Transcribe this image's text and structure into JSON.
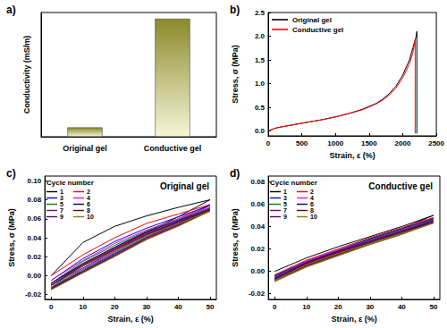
{
  "chart_data": [
    {
      "type": "bar",
      "title": "a)",
      "ylabel": "Conductivity (mS/m)",
      "categories": [
        "Original gel",
        "Conductive gel"
      ],
      "values": [
        6,
        76
      ],
      "color": "#8c8a2a",
      "ylim": [
        0,
        80
      ],
      "tick_labels": "x",
      "grid": false
    },
    {
      "type": "line",
      "title": "b)",
      "xlabel": "Strain, ε (%)",
      "ylabel": "Stress, σ (MPa)",
      "xlim": [
        0,
        2500
      ],
      "xticks": [
        0,
        500,
        1000,
        1500,
        2000,
        2500
      ],
      "ylim": [
        -0.1,
        2.5
      ],
      "yticks": [
        {
          "value": 0,
          "label": "0.0"
        },
        0.5,
        {
          "value": 1,
          "label": "1.0"
        },
        1.5,
        {
          "value": 2,
          "label": "2.0"
        },
        2.5
      ],
      "legend": "upper left",
      "grid": false,
      "series": [
        {
          "name": "Original gel",
          "color": "#000000",
          "x": [
            0,
            100,
            200,
            400,
            600,
            800,
            1000,
            1200,
            1400,
            1600,
            1700,
            1800,
            1900,
            2000,
            2100,
            2150,
            2200,
            2210,
            2210
          ],
          "values": [
            0,
            0.06,
            0.09,
            0.14,
            0.19,
            0.24,
            0.3,
            0.37,
            0.46,
            0.58,
            0.67,
            0.79,
            0.95,
            1.18,
            1.5,
            1.75,
            2.0,
            2.1,
            -0.05
          ]
        },
        {
          "name": "Conductive gel",
          "color": "#ff0000",
          "x": [
            0,
            100,
            200,
            400,
            600,
            800,
            1000,
            1200,
            1400,
            1600,
            1700,
            1800,
            1900,
            2000,
            2100,
            2150,
            2185,
            2185
          ],
          "values": [
            0,
            0.06,
            0.09,
            0.14,
            0.19,
            0.24,
            0.3,
            0.37,
            0.45,
            0.57,
            0.65,
            0.76,
            0.91,
            1.12,
            1.42,
            1.65,
            1.93,
            -0.05
          ]
        }
      ]
    },
    {
      "type": "line",
      "title": "c)",
      "xlabel": "Strain, ε (%)",
      "ylabel": "Stress, σ (MPa)",
      "annotations": [
        "Original gel",
        "Cycle number"
      ],
      "xlim": [
        -2,
        52
      ],
      "xticks": [
        0,
        10,
        20,
        30,
        40,
        50
      ],
      "ylim": [
        -0.025,
        0.105
      ],
      "yticks": [
        -0.02,
        {
          "value": 0,
          "label": "0.00"
        },
        0.02,
        0.04,
        0.06,
        0.08,
        {
          "value": 0.1,
          "label": "0.10"
        }
      ],
      "legend": "upper left",
      "grid": false,
      "x": [
        0,
        10,
        20,
        30,
        40,
        50,
        40,
        30,
        20,
        10,
        0
      ],
      "series": [
        {
          "name": "1",
          "color": "#000000",
          "values": [
            0,
            0.035,
            0.052,
            0.063,
            0.072,
            0.08,
            0.062,
            0.046,
            0.03,
            0.012,
            -0.008
          ]
        },
        {
          "name": "2",
          "color": "#ff0000",
          "values": [
            0,
            0.022,
            0.04,
            0.055,
            0.065,
            0.075,
            0.06,
            0.045,
            0.028,
            0.01,
            -0.01
          ]
        },
        {
          "name": "3",
          "color": "#0000ff",
          "values": [
            -0.005,
            0.018,
            0.036,
            0.05,
            0.062,
            0.074,
            0.058,
            0.043,
            0.026,
            0.008,
            -0.01
          ]
        },
        {
          "name": "4",
          "color": "#ff00ff",
          "values": [
            -0.005,
            0.016,
            0.034,
            0.048,
            0.06,
            0.072,
            0.057,
            0.042,
            0.025,
            0.007,
            -0.012
          ]
        },
        {
          "name": "5",
          "color": "#008000",
          "values": [
            -0.008,
            0.015,
            0.032,
            0.047,
            0.059,
            0.071,
            0.056,
            0.041,
            0.024,
            0.006,
            -0.012
          ]
        },
        {
          "name": "6",
          "color": "#000080",
          "values": [
            -0.008,
            0.013,
            0.03,
            0.046,
            0.058,
            0.07,
            0.055,
            0.04,
            0.023,
            0.005,
            -0.013
          ]
        },
        {
          "name": "7",
          "color": "#800080",
          "values": [
            -0.01,
            0.012,
            0.029,
            0.045,
            0.057,
            0.07,
            0.054,
            0.04,
            0.022,
            0.004,
            -0.013
          ]
        },
        {
          "name": "8",
          "color": "#800000",
          "values": [
            -0.01,
            0.011,
            0.028,
            0.044,
            0.056,
            0.069,
            0.053,
            0.039,
            0.021,
            0.004,
            -0.014
          ]
        },
        {
          "name": "9",
          "color": "#4b0082",
          "values": [
            -0.01,
            0.01,
            0.027,
            0.043,
            0.056,
            0.068,
            0.053,
            0.038,
            0.021,
            0.003,
            -0.014
          ]
        },
        {
          "name": "10",
          "color": "#808000",
          "values": [
            -0.012,
            0.01,
            0.026,
            0.042,
            0.055,
            0.068,
            0.052,
            0.038,
            0.02,
            0.003,
            -0.015
          ]
        }
      ]
    },
    {
      "type": "line",
      "title": "d)",
      "xlabel": "Strain, ε (%)",
      "ylabel": "Stress, σ (MPa)",
      "annotations": [
        "Conductive gel",
        "Cycle number"
      ],
      "xlim": [
        -2,
        52
      ],
      "xticks": [
        0,
        10,
        20,
        30,
        40,
        50
      ],
      "ylim": [
        -0.025,
        0.085
      ],
      "yticks": [
        -0.02,
        {
          "value": 0,
          "label": "0.00"
        },
        0.02,
        0.04,
        0.06,
        0.08
      ],
      "legend": "upper left",
      "grid": false,
      "x": [
        0,
        10,
        20,
        30,
        40,
        50,
        40,
        30,
        20,
        10,
        0
      ],
      "series": [
        {
          "name": "1",
          "color": "#000000",
          "values": [
            0,
            0.012,
            0.022,
            0.031,
            0.04,
            0.05,
            0.038,
            0.029,
            0.019,
            0.009,
            -0.004
          ]
        },
        {
          "name": "2",
          "color": "#ff0000",
          "values": [
            -0.003,
            0.01,
            0.02,
            0.03,
            0.039,
            0.048,
            0.037,
            0.028,
            0.018,
            0.008,
            -0.005
          ]
        },
        {
          "name": "3",
          "color": "#0000ff",
          "values": [
            -0.004,
            0.009,
            0.019,
            0.029,
            0.038,
            0.047,
            0.036,
            0.027,
            0.017,
            0.007,
            -0.006
          ]
        },
        {
          "name": "4",
          "color": "#ff00ff",
          "values": [
            -0.005,
            0.009,
            0.019,
            0.028,
            0.037,
            0.046,
            0.036,
            0.027,
            0.017,
            0.007,
            -0.006
          ]
        },
        {
          "name": "5",
          "color": "#008000",
          "values": [
            -0.005,
            0.008,
            0.018,
            0.028,
            0.037,
            0.046,
            0.035,
            0.026,
            0.016,
            0.006,
            -0.007
          ]
        },
        {
          "name": "6",
          "color": "#000080",
          "values": [
            -0.006,
            0.008,
            0.018,
            0.027,
            0.036,
            0.045,
            0.035,
            0.026,
            0.016,
            0.006,
            -0.007
          ]
        },
        {
          "name": "7",
          "color": "#800080",
          "values": [
            -0.006,
            0.007,
            0.017,
            0.027,
            0.036,
            0.045,
            0.034,
            0.025,
            0.015,
            0.005,
            -0.008
          ]
        },
        {
          "name": "8",
          "color": "#800000",
          "values": [
            -0.007,
            0.007,
            0.017,
            0.026,
            0.035,
            0.044,
            0.034,
            0.025,
            0.015,
            0.005,
            -0.008
          ]
        },
        {
          "name": "9",
          "color": "#4b0082",
          "values": [
            -0.007,
            0.006,
            0.016,
            0.026,
            0.035,
            0.044,
            0.033,
            0.024,
            0.014,
            0.004,
            -0.009
          ]
        },
        {
          "name": "10",
          "color": "#808000",
          "values": [
            -0.008,
            0.006,
            0.016,
            0.025,
            0.034,
            0.043,
            0.033,
            0.024,
            0.014,
            0.004,
            -0.009
          ]
        }
      ]
    }
  ]
}
